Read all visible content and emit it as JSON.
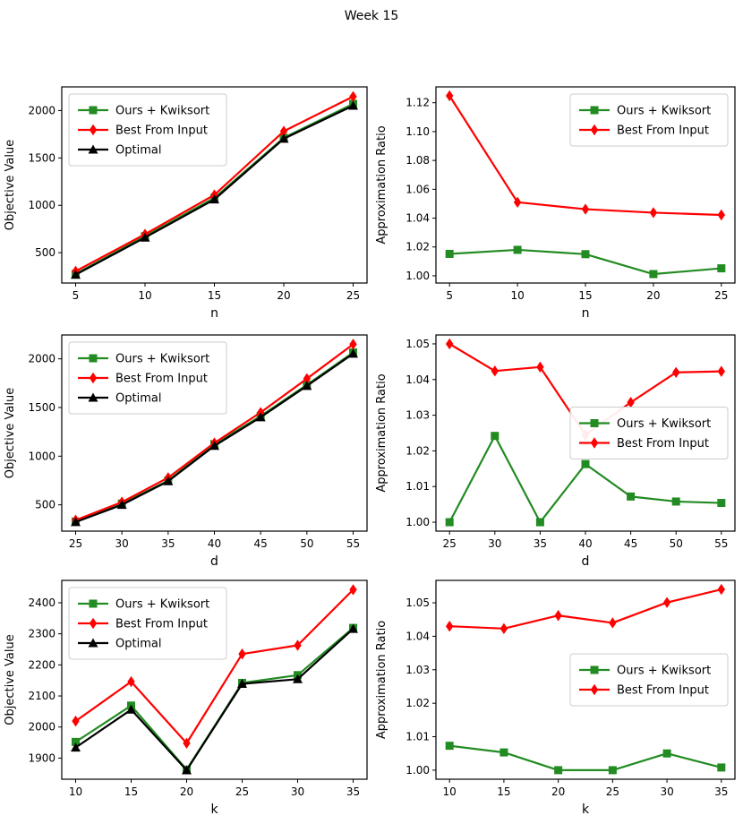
{
  "title": "Week 15",
  "colors": {
    "ours": "#228B22",
    "best": "#ff0000",
    "optimal": "#000000"
  },
  "chart_data": [
    {
      "type": "line",
      "title": "",
      "xlabel": "n",
      "ylabel": "Objective Value",
      "x": [
        5,
        10,
        15,
        20,
        25
      ],
      "xlim": [
        4,
        26
      ],
      "ylim": [
        180,
        2250
      ],
      "xticks": [
        5,
        10,
        15,
        20,
        25
      ],
      "yticks": [
        500,
        1000,
        1500,
        2000
      ],
      "ytick_labels": [
        "500",
        "1000",
        "1500",
        "2000"
      ],
      "grid": false,
      "legend_pos": "upper-left",
      "series": [
        {
          "name": "Ours + Kwiksort",
          "color": "#228B22",
          "marker": "square",
          "values": [
            276,
            674,
            1078,
            1712,
            2070
          ]
        },
        {
          "name": "Best From Input",
          "color": "#ff0000",
          "marker": "diamond",
          "values": [
            304,
            695,
            1110,
            1782,
            2148
          ]
        },
        {
          "name": "Optimal",
          "color": "#000000",
          "marker": "triangle",
          "values": [
            268,
            660,
            1062,
            1703,
            2052
          ]
        }
      ]
    },
    {
      "type": "line",
      "title": "",
      "xlabel": "n",
      "ylabel": "Approximation Ratio",
      "x": [
        5,
        10,
        15,
        20,
        25
      ],
      "xlim": [
        4,
        26
      ],
      "ylim": [
        0.995,
        1.131
      ],
      "xticks": [
        5,
        10,
        15,
        20,
        25
      ],
      "yticks": [
        1.0,
        1.02,
        1.04,
        1.06,
        1.08,
        1.1,
        1.12
      ],
      "ytick_labels": [
        "1.00",
        "1.02",
        "1.04",
        "1.06",
        "1.08",
        "1.10",
        "1.12"
      ],
      "grid": false,
      "legend_pos": "upper-right",
      "series": [
        {
          "name": "Ours + Kwiksort",
          "color": "#228B22",
          "marker": "square",
          "values": [
            1.0152,
            1.018,
            1.015,
            1.0012,
            1.0052
          ]
        },
        {
          "name": "Best From Input",
          "color": "#ff0000",
          "marker": "diamond",
          "values": [
            1.1248,
            1.051,
            1.0462,
            1.0438,
            1.0422
          ]
        }
      ]
    },
    {
      "type": "line",
      "title": "",
      "xlabel": "d",
      "ylabel": "Objective Value",
      "x": [
        25,
        30,
        35,
        40,
        45,
        50,
        55
      ],
      "xlim": [
        23.5,
        56.5
      ],
      "ylim": [
        230,
        2245
      ],
      "xticks": [
        25,
        30,
        35,
        40,
        45,
        50,
        55
      ],
      "yticks": [
        500,
        1000,
        1500,
        2000
      ],
      "ytick_labels": [
        "500",
        "1000",
        "1500",
        "2000"
      ],
      "grid": false,
      "legend_pos": "upper-left",
      "series": [
        {
          "name": "Ours + Kwiksort",
          "color": "#228B22",
          "marker": "square",
          "values": [
            328,
            513,
            748,
            1123,
            1412,
            1733,
            2065
          ]
        },
        {
          "name": "Best From Input",
          "color": "#ff0000",
          "marker": "diamond",
          "values": [
            343,
            528,
            779,
            1136,
            1449,
            1796,
            2150
          ]
        },
        {
          "name": "Optimal",
          "color": "#000000",
          "marker": "triangle",
          "values": [
            323,
            500,
            743,
            1106,
            1400,
            1722,
            2053
          ]
        }
      ]
    },
    {
      "type": "line",
      "title": "",
      "xlabel": "d",
      "ylabel": "Approximation Ratio",
      "x": [
        25,
        30,
        35,
        40,
        45,
        50,
        55
      ],
      "xlim": [
        23.5,
        56.5
      ],
      "ylim": [
        0.9975,
        1.0525
      ],
      "xticks": [
        25,
        30,
        35,
        40,
        45,
        50,
        55
      ],
      "yticks": [
        1.0,
        1.01,
        1.02,
        1.03,
        1.04,
        1.05
      ],
      "ytick_labels": [
        "1.00",
        "1.01",
        "1.02",
        "1.03",
        "1.04",
        "1.05"
      ],
      "grid": false,
      "legend_pos": "center-right",
      "series": [
        {
          "name": "Ours + Kwiksort",
          "color": "#228B22",
          "marker": "square",
          "values": [
            1.0,
            1.0242,
            1.0,
            1.0163,
            1.0072,
            1.0058,
            1.0054
          ]
        },
        {
          "name": "Best From Input",
          "color": "#ff0000",
          "marker": "diamond",
          "values": [
            1.05,
            1.0424,
            1.0435,
            1.0245,
            1.0336,
            1.042,
            1.0423
          ]
        }
      ]
    },
    {
      "type": "line",
      "title": "",
      "xlabel": "k",
      "ylabel": "Objective Value",
      "x": [
        10,
        15,
        20,
        25,
        30,
        35
      ],
      "xlim": [
        8.75,
        36.25
      ],
      "ylim": [
        1832,
        2472
      ],
      "xticks": [
        10,
        15,
        20,
        25,
        30,
        35
      ],
      "yticks": [
        1900,
        2000,
        2100,
        2200,
        2300,
        2400
      ],
      "ytick_labels": [
        "1900",
        "2000",
        "2100",
        "2200",
        "2300",
        "2400"
      ],
      "grid": false,
      "legend_pos": "upper-left",
      "series": [
        {
          "name": "Ours + Kwiksort",
          "color": "#228B22",
          "marker": "square",
          "values": [
            1952,
            2069,
            1863,
            2142,
            2167,
            2319
          ]
        },
        {
          "name": "Best From Input",
          "color": "#ff0000",
          "marker": "diamond",
          "values": [
            2019,
            2146,
            1948,
            2235,
            2263,
            2442
          ]
        },
        {
          "name": "Optimal",
          "color": "#000000",
          "marker": "triangle",
          "values": [
            1934,
            2056,
            1861,
            2139,
            2154,
            2316
          ]
        }
      ]
    },
    {
      "type": "line",
      "title": "",
      "xlabel": "k",
      "ylabel": "Approximation Ratio",
      "x": [
        10,
        15,
        20,
        25,
        30,
        35
      ],
      "xlim": [
        8.75,
        36.25
      ],
      "ylim": [
        0.9973,
        1.0567
      ],
      "xticks": [
        10,
        15,
        20,
        25,
        30,
        35
      ],
      "yticks": [
        1.0,
        1.01,
        1.02,
        1.03,
        1.04,
        1.05
      ],
      "ytick_labels": [
        "1.00",
        "1.01",
        "1.02",
        "1.03",
        "1.04",
        "1.05"
      ],
      "grid": false,
      "legend_pos": "center-right",
      "series": [
        {
          "name": "Ours + Kwiksort",
          "color": "#228B22",
          "marker": "square",
          "values": [
            1.0073,
            1.0053,
            1.0,
            1.0,
            1.005,
            1.0008
          ]
        },
        {
          "name": "Best From Input",
          "color": "#ff0000",
          "marker": "diamond",
          "values": [
            1.043,
            1.0423,
            1.0462,
            1.044,
            1.0501,
            1.054
          ]
        }
      ]
    }
  ]
}
